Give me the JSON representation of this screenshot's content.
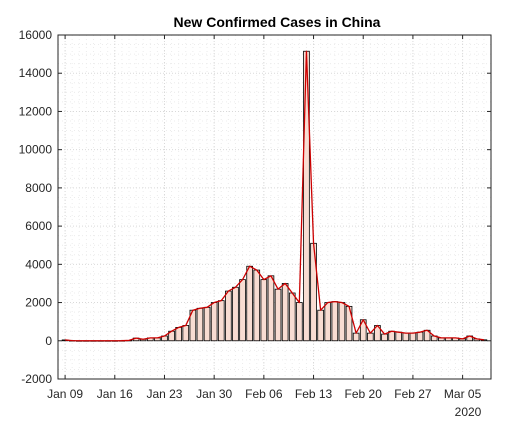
{
  "chart_data": {
    "type": "bar",
    "title": "New Confirmed Cases in China",
    "xlabel": "",
    "ylabel": "",
    "ylim": [
      -2000,
      16000
    ],
    "yticks": [
      -2000,
      0,
      2000,
      4000,
      6000,
      8000,
      10000,
      12000,
      14000,
      16000
    ],
    "x_start": "2020-01-08",
    "x_end": "2020-03-09",
    "xticks": [
      {
        "date": "2020-01-09",
        "label": "Jan 09"
      },
      {
        "date": "2020-01-16",
        "label": "Jan 16"
      },
      {
        "date": "2020-01-23",
        "label": "Jan 23"
      },
      {
        "date": "2020-01-30",
        "label": "Jan 30"
      },
      {
        "date": "2020-02-06",
        "label": "Feb 06"
      },
      {
        "date": "2020-02-13",
        "label": "Feb 13"
      },
      {
        "date": "2020-02-20",
        "label": "Feb 20"
      },
      {
        "date": "2020-02-27",
        "label": "Feb 27"
      },
      {
        "date": "2020-03-05",
        "label": "Mar 05"
      }
    ],
    "year_label": "2020",
    "grid": true,
    "series": [
      {
        "name": "",
        "style": "bar",
        "color": "#f8dcd2",
        "x": [
          "2020-01-09",
          "2020-01-10",
          "2020-01-11",
          "2020-01-12",
          "2020-01-13",
          "2020-01-14",
          "2020-01-15",
          "2020-01-16",
          "2020-01-17",
          "2020-01-18",
          "2020-01-19",
          "2020-01-20",
          "2020-01-21",
          "2020-01-22",
          "2020-01-23",
          "2020-01-24",
          "2020-01-25",
          "2020-01-26",
          "2020-01-27",
          "2020-01-28",
          "2020-01-29",
          "2020-01-30",
          "2020-01-31",
          "2020-02-01",
          "2020-02-02",
          "2020-02-03",
          "2020-02-04",
          "2020-02-05",
          "2020-02-06",
          "2020-02-07",
          "2020-02-08",
          "2020-02-09",
          "2020-02-10",
          "2020-02-11",
          "2020-02-12",
          "2020-02-13",
          "2020-02-14",
          "2020-02-15",
          "2020-02-16",
          "2020-02-17",
          "2020-02-18",
          "2020-02-19",
          "2020-02-20",
          "2020-02-21",
          "2020-02-22",
          "2020-02-23",
          "2020-02-24",
          "2020-02-25",
          "2020-02-26",
          "2020-02-27",
          "2020-02-28",
          "2020-02-29",
          "2020-03-01",
          "2020-03-02",
          "2020-03-03",
          "2020-03-04",
          "2020-03-05",
          "2020-03-06",
          "2020-03-07",
          "2020-03-08"
        ],
        "values": [
          45,
          10,
          0,
          0,
          0,
          0,
          0,
          0,
          5,
          20,
          140,
          80,
          150,
          150,
          250,
          500,
          700,
          800,
          1600,
          1700,
          1750,
          2000,
          2100,
          2600,
          2800,
          3200,
          3900,
          3700,
          3200,
          3400,
          2700,
          3000,
          2500,
          2000,
          15150,
          5100,
          1600,
          2000,
          2050,
          2000,
          1800,
          400,
          1100,
          400,
          800,
          350,
          500,
          450,
          400,
          400,
          450,
          550,
          250,
          150,
          150,
          150,
          100,
          250,
          100,
          50
        ]
      },
      {
        "name": "",
        "style": "line",
        "color": "#cc0000",
        "x": [
          "2020-01-09",
          "2020-01-10",
          "2020-01-11",
          "2020-01-12",
          "2020-01-13",
          "2020-01-14",
          "2020-01-15",
          "2020-01-16",
          "2020-01-17",
          "2020-01-18",
          "2020-01-19",
          "2020-01-20",
          "2020-01-21",
          "2020-01-22",
          "2020-01-23",
          "2020-01-24",
          "2020-01-25",
          "2020-01-26",
          "2020-01-27",
          "2020-01-28",
          "2020-01-29",
          "2020-01-30",
          "2020-01-31",
          "2020-02-01",
          "2020-02-02",
          "2020-02-03",
          "2020-02-04",
          "2020-02-05",
          "2020-02-06",
          "2020-02-07",
          "2020-02-08",
          "2020-02-09",
          "2020-02-10",
          "2020-02-11",
          "2020-02-12",
          "2020-02-13",
          "2020-02-14",
          "2020-02-15",
          "2020-02-16",
          "2020-02-17",
          "2020-02-18",
          "2020-02-19",
          "2020-02-20",
          "2020-02-21",
          "2020-02-22",
          "2020-02-23",
          "2020-02-24",
          "2020-02-25",
          "2020-02-26",
          "2020-02-27",
          "2020-02-28",
          "2020-02-29",
          "2020-03-01",
          "2020-03-02",
          "2020-03-03",
          "2020-03-04",
          "2020-03-05",
          "2020-03-06",
          "2020-03-07",
          "2020-03-08"
        ],
        "values": [
          45,
          10,
          0,
          0,
          0,
          0,
          0,
          0,
          5,
          20,
          140,
          80,
          150,
          150,
          250,
          500,
          700,
          800,
          1600,
          1700,
          1750,
          2000,
          2100,
          2600,
          2800,
          3200,
          3900,
          3700,
          3200,
          3400,
          2700,
          3000,
          2500,
          2000,
          15150,
          5100,
          1600,
          2000,
          2050,
          2000,
          1800,
          400,
          1100,
          400,
          800,
          350,
          500,
          450,
          400,
          400,
          450,
          550,
          250,
          150,
          150,
          150,
          100,
          250,
          100,
          50
        ]
      }
    ]
  }
}
